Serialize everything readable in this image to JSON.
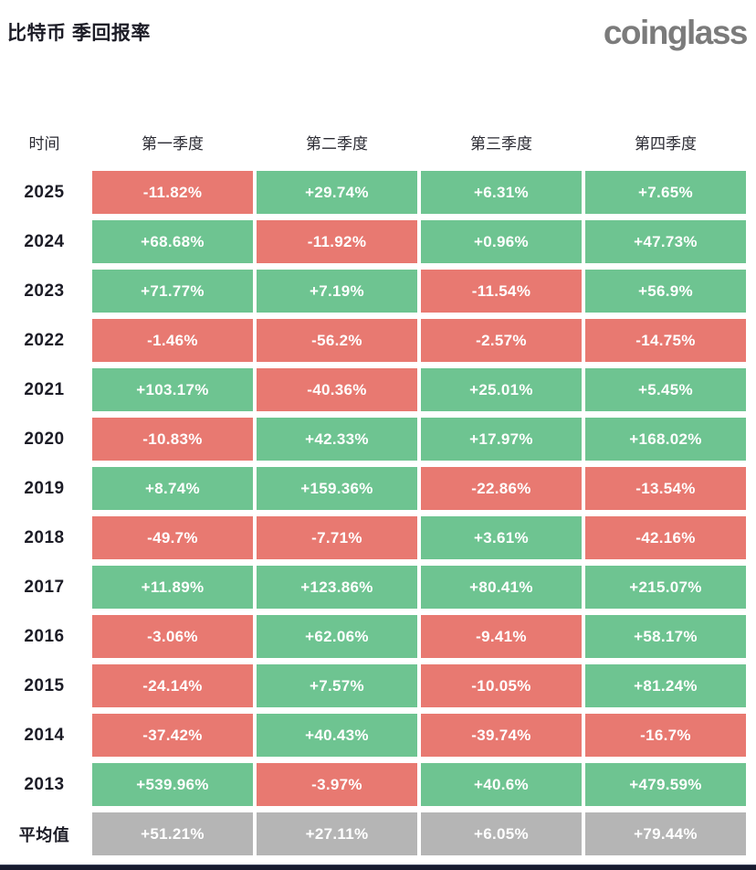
{
  "page": {
    "title": "比特币 季回报率",
    "logo": "coinglass"
  },
  "colors": {
    "green": "#6ec491",
    "red": "#e87971",
    "gray": "#b5b5b5",
    "logo_gray": "#7b7b7b",
    "text_dark": "#1c1c26",
    "bottom_bar": "#171b2e"
  },
  "table": {
    "headers": [
      "时间",
      "第一季度",
      "第二季度",
      "第三季度",
      "第四季度"
    ],
    "rows": [
      {
        "label": "2025",
        "cells": [
          {
            "text": "-11.82%",
            "color": "red"
          },
          {
            "text": "+29.74%",
            "color": "green"
          },
          {
            "text": "+6.31%",
            "color": "green"
          },
          {
            "text": "+7.65%",
            "color": "green"
          }
        ]
      },
      {
        "label": "2024",
        "cells": [
          {
            "text": "+68.68%",
            "color": "green"
          },
          {
            "text": "-11.92%",
            "color": "red"
          },
          {
            "text": "+0.96%",
            "color": "green"
          },
          {
            "text": "+47.73%",
            "color": "green"
          }
        ]
      },
      {
        "label": "2023",
        "cells": [
          {
            "text": "+71.77%",
            "color": "green"
          },
          {
            "text": "+7.19%",
            "color": "green"
          },
          {
            "text": "-11.54%",
            "color": "red"
          },
          {
            "text": "+56.9%",
            "color": "green"
          }
        ]
      },
      {
        "label": "2022",
        "cells": [
          {
            "text": "-1.46%",
            "color": "red"
          },
          {
            "text": "-56.2%",
            "color": "red"
          },
          {
            "text": "-2.57%",
            "color": "red"
          },
          {
            "text": "-14.75%",
            "color": "red"
          }
        ]
      },
      {
        "label": "2021",
        "cells": [
          {
            "text": "+103.17%",
            "color": "green"
          },
          {
            "text": "-40.36%",
            "color": "red"
          },
          {
            "text": "+25.01%",
            "color": "green"
          },
          {
            "text": "+5.45%",
            "color": "green"
          }
        ]
      },
      {
        "label": "2020",
        "cells": [
          {
            "text": "-10.83%",
            "color": "red"
          },
          {
            "text": "+42.33%",
            "color": "green"
          },
          {
            "text": "+17.97%",
            "color": "green"
          },
          {
            "text": "+168.02%",
            "color": "green"
          }
        ]
      },
      {
        "label": "2019",
        "cells": [
          {
            "text": "+8.74%",
            "color": "green"
          },
          {
            "text": "+159.36%",
            "color": "green"
          },
          {
            "text": "-22.86%",
            "color": "red"
          },
          {
            "text": "-13.54%",
            "color": "red"
          }
        ]
      },
      {
        "label": "2018",
        "cells": [
          {
            "text": "-49.7%",
            "color": "red"
          },
          {
            "text": "-7.71%",
            "color": "red"
          },
          {
            "text": "+3.61%",
            "color": "green"
          },
          {
            "text": "-42.16%",
            "color": "red"
          }
        ]
      },
      {
        "label": "2017",
        "cells": [
          {
            "text": "+11.89%",
            "color": "green"
          },
          {
            "text": "+123.86%",
            "color": "green"
          },
          {
            "text": "+80.41%",
            "color": "green"
          },
          {
            "text": "+215.07%",
            "color": "green"
          }
        ]
      },
      {
        "label": "2016",
        "cells": [
          {
            "text": "-3.06%",
            "color": "red"
          },
          {
            "text": "+62.06%",
            "color": "green"
          },
          {
            "text": "-9.41%",
            "color": "red"
          },
          {
            "text": "+58.17%",
            "color": "green"
          }
        ]
      },
      {
        "label": "2015",
        "cells": [
          {
            "text": "-24.14%",
            "color": "red"
          },
          {
            "text": "+7.57%",
            "color": "green"
          },
          {
            "text": "-10.05%",
            "color": "red"
          },
          {
            "text": "+81.24%",
            "color": "green"
          }
        ]
      },
      {
        "label": "2014",
        "cells": [
          {
            "text": "-37.42%",
            "color": "red"
          },
          {
            "text": "+40.43%",
            "color": "green"
          },
          {
            "text": "-39.74%",
            "color": "red"
          },
          {
            "text": "-16.7%",
            "color": "red"
          }
        ]
      },
      {
        "label": "2013",
        "cells": [
          {
            "text": "+539.96%",
            "color": "green"
          },
          {
            "text": "-3.97%",
            "color": "red"
          },
          {
            "text": "+40.6%",
            "color": "green"
          },
          {
            "text": "+479.59%",
            "color": "green"
          }
        ]
      },
      {
        "label": "平均值",
        "average": true,
        "cells": [
          {
            "text": "+51.21%",
            "color": "gray"
          },
          {
            "text": "+27.11%",
            "color": "gray"
          },
          {
            "text": "+6.05%",
            "color": "gray"
          },
          {
            "text": "+79.44%",
            "color": "gray"
          }
        ]
      }
    ]
  },
  "chart_data": {
    "type": "heatmap",
    "title": "比特币 季回报率",
    "row_label_header": "时间",
    "columns": [
      "第一季度",
      "第二季度",
      "第三季度",
      "第四季度"
    ],
    "unit": "%",
    "rows": [
      {
        "label": "2025",
        "values": [
          -11.82,
          29.74,
          6.31,
          7.65
        ]
      },
      {
        "label": "2024",
        "values": [
          68.68,
          -11.92,
          0.96,
          47.73
        ]
      },
      {
        "label": "2023",
        "values": [
          71.77,
          7.19,
          -11.54,
          56.9
        ]
      },
      {
        "label": "2022",
        "values": [
          -1.46,
          -56.2,
          -2.57,
          -14.75
        ]
      },
      {
        "label": "2021",
        "values": [
          103.17,
          -40.36,
          25.01,
          5.45
        ]
      },
      {
        "label": "2020",
        "values": [
          -10.83,
          42.33,
          17.97,
          168.02
        ]
      },
      {
        "label": "2019",
        "values": [
          8.74,
          159.36,
          -22.86,
          -13.54
        ]
      },
      {
        "label": "2018",
        "values": [
          -49.7,
          -7.71,
          3.61,
          -42.16
        ]
      },
      {
        "label": "2017",
        "values": [
          11.89,
          123.86,
          80.41,
          215.07
        ]
      },
      {
        "label": "2016",
        "values": [
          -3.06,
          62.06,
          -9.41,
          58.17
        ]
      },
      {
        "label": "2015",
        "values": [
          -24.14,
          7.57,
          -10.05,
          81.24
        ]
      },
      {
        "label": "2014",
        "values": [
          -37.42,
          40.43,
          -39.74,
          -16.7
        ]
      },
      {
        "label": "2013",
        "values": [
          539.96,
          -3.97,
          40.6,
          479.59
        ]
      },
      {
        "label": "平均值",
        "values": [
          51.21,
          27.11,
          6.05,
          79.44
        ]
      }
    ],
    "color_rule": "green = positive quarter, red = negative quarter, gray = average row"
  }
}
